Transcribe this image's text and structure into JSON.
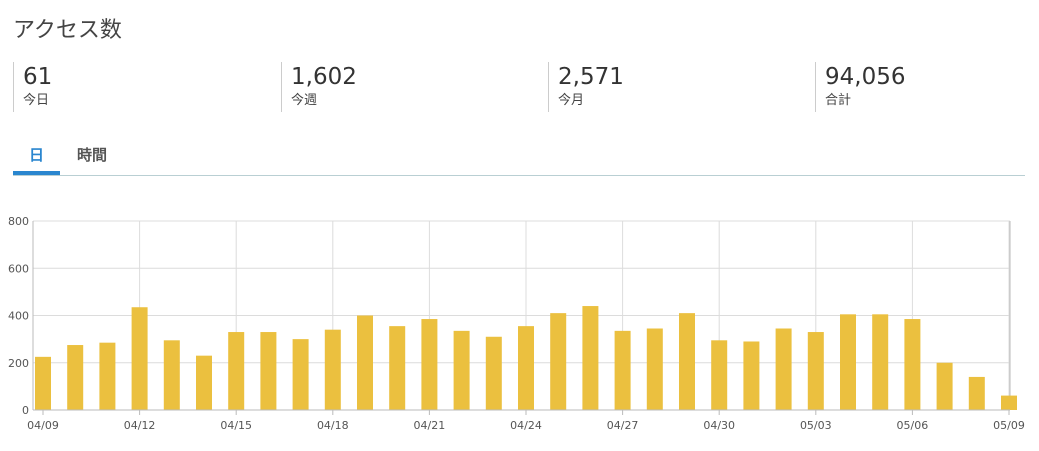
{
  "header": {
    "title": "アクセス数"
  },
  "stats": [
    {
      "value": "61",
      "label": "今日"
    },
    {
      "value": "1,602",
      "label": "今週"
    },
    {
      "value": "2,571",
      "label": "今月"
    },
    {
      "value": "94,056",
      "label": "合計"
    }
  ],
  "tabs": [
    "日",
    "時間"
  ],
  "chart_data": {
    "type": "bar",
    "categories": [
      "04/09",
      null,
      null,
      "04/12",
      null,
      null,
      "04/15",
      null,
      null,
      "04/18",
      null,
      null,
      "04/21",
      null,
      null,
      "04/24",
      null,
      null,
      "04/27",
      null,
      null,
      "04/30",
      null,
      null,
      "05/03",
      null,
      null,
      "05/06",
      null,
      null,
      "05/09"
    ],
    "values": [
      225,
      275,
      285,
      435,
      295,
      230,
      330,
      330,
      300,
      340,
      400,
      355,
      385,
      335,
      310,
      355,
      410,
      440,
      335,
      345,
      410,
      295,
      290,
      345,
      330,
      405,
      405,
      385,
      200,
      140,
      61
    ],
    "color": "#ebc03f",
    "ylim": [
      0,
      800
    ],
    "yticks": [
      0,
      200,
      400,
      600,
      800
    ],
    "grid": true
  }
}
